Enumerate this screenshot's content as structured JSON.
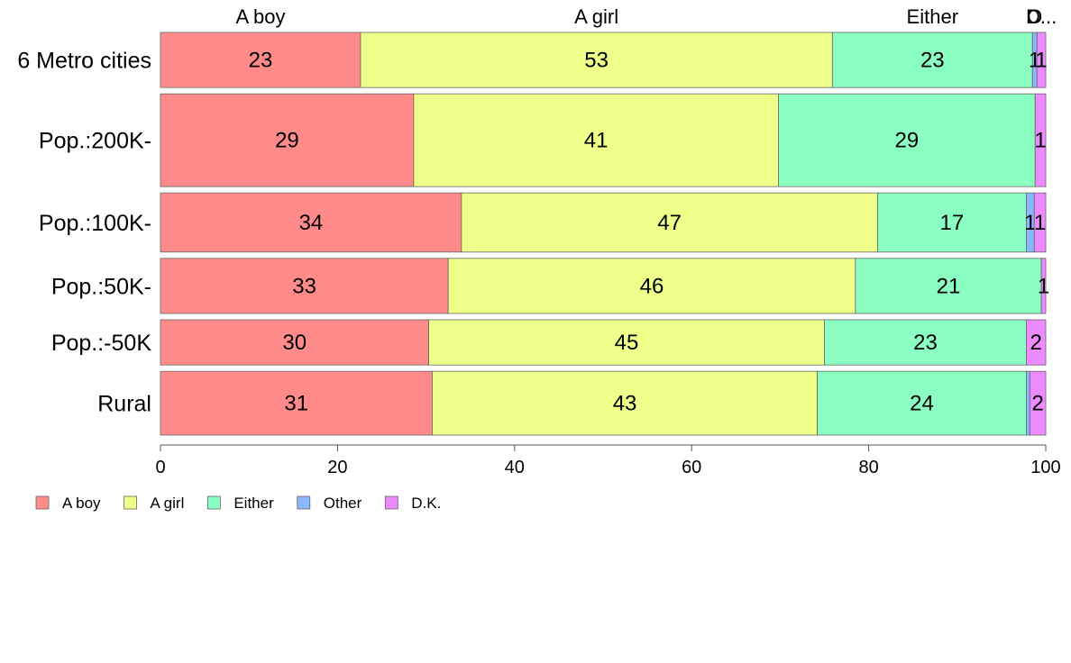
{
  "chart_data": {
    "type": "bar",
    "orientation": "horizontal",
    "stacked": true,
    "categories": [
      "6 Metro cities",
      "Pop.:200K-",
      "Pop.:100K-",
      "Pop.:50K-",
      "Pop.:-50K",
      "Rural"
    ],
    "category_weights": [
      0.95,
      1.6,
      1.02,
      0.95,
      0.78,
      1.1
    ],
    "series": [
      {
        "name": "A boy",
        "color": "#FF8A8A",
        "values": [
          22.6,
          28.6,
          34.0,
          32.5,
          30.3,
          30.7
        ],
        "labels": [
          "23",
          "29",
          "34",
          "33",
          "30",
          "31"
        ]
      },
      {
        "name": "A girl",
        "color": "#EEFF8A",
        "values": [
          53.3,
          41.2,
          47.0,
          46.0,
          44.7,
          43.5
        ],
        "labels": [
          "53",
          "41",
          "47",
          "46",
          "45",
          "43"
        ]
      },
      {
        "name": "Either",
        "color": "#8AFFC1",
        "values": [
          22.6,
          29.0,
          16.8,
          21.0,
          22.8,
          23.6
        ],
        "labels": [
          "23",
          "29",
          "17",
          "21",
          "23",
          "24"
        ]
      },
      {
        "name": "Other",
        "color": "#8AB8FF",
        "values": [
          0.5,
          0.0,
          0.9,
          0.0,
          0.0,
          0.4
        ],
        "labels": [
          "1",
          "",
          "1",
          "",
          "",
          ""
        ]
      },
      {
        "name": "D.K.",
        "color": "#EE8AFF",
        "values": [
          1.0,
          1.2,
          1.3,
          0.5,
          2.2,
          1.8
        ],
        "labels": [
          "1",
          "1",
          "1",
          "1",
          "2",
          "2"
        ]
      }
    ],
    "top_labels": [
      "A boy",
      "A girl",
      "Either",
      "O",
      "D..."
    ],
    "xlim": [
      0,
      100
    ],
    "xticks": [
      "0",
      "20",
      "40",
      "60",
      "80",
      "100"
    ],
    "xlabel": "",
    "ylabel": "",
    "title": "",
    "grid": false,
    "legend": {
      "position": "bottom-left",
      "items": [
        "A boy",
        "A girl",
        "Either",
        "Other",
        "D.K."
      ]
    }
  }
}
